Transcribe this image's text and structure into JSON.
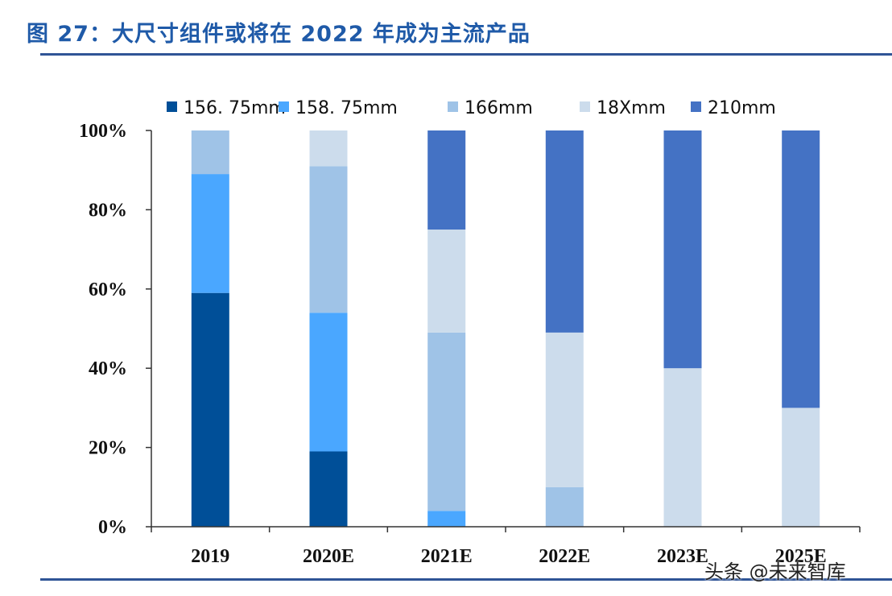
{
  "figure": {
    "header": "图 27：大尺寸组件或将在 2022 年成为主流产品",
    "watermark": "头条 @未来智库"
  },
  "colors": {
    "header": "#1f5aa8",
    "rule": "#2f5496"
  },
  "chart_data": {
    "type": "bar",
    "stacked": true,
    "categories": [
      "2019",
      "2020E",
      "2021E",
      "2022E",
      "2023E",
      "2025E"
    ],
    "series": [
      {
        "name": "156. 75mm",
        "color": "#004f98",
        "values": [
          59,
          19,
          0,
          0,
          0,
          0
        ]
      },
      {
        "name": "158. 75mm",
        "color": "#4aa7ff",
        "values": [
          30,
          35,
          4,
          0,
          0,
          0
        ]
      },
      {
        "name": "166mm",
        "color": "#9fc3e7",
        "values": [
          11,
          37,
          45,
          10,
          0,
          0
        ]
      },
      {
        "name": "18Xmm",
        "color": "#ccdcec",
        "values": [
          0,
          9,
          26,
          39,
          40,
          30
        ]
      },
      {
        "name": "210mm",
        "color": "#4472c4",
        "values": [
          0,
          0,
          25,
          51,
          60,
          70
        ]
      }
    ],
    "yticks": [
      "0%",
      "20%",
      "40%",
      "60%",
      "80%",
      "100%"
    ],
    "ylim": [
      0,
      100
    ],
    "legend_position": "top",
    "grid": false,
    "title": "",
    "xlabel": "",
    "ylabel": ""
  }
}
